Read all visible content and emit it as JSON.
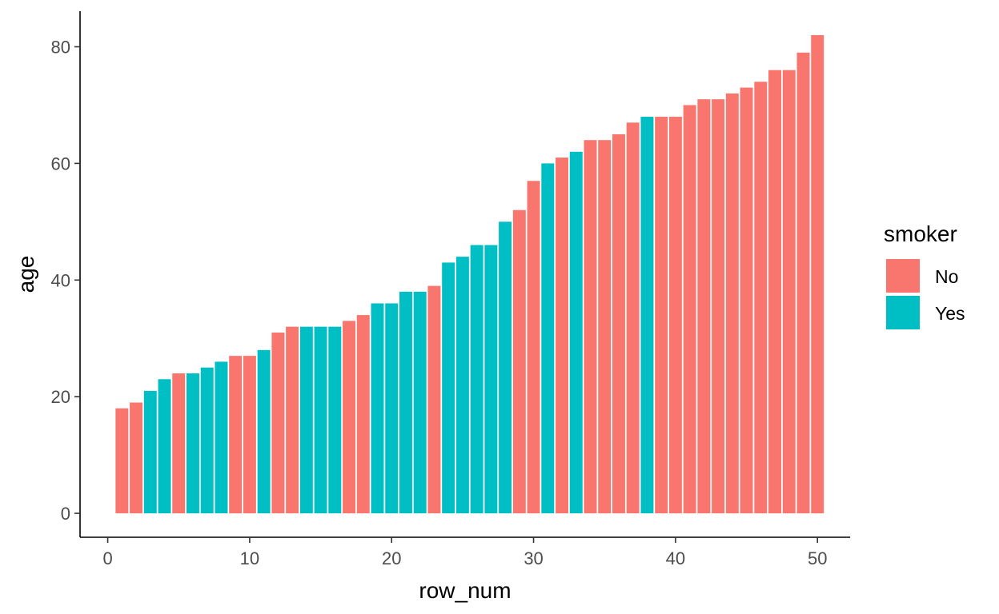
{
  "chart_data": {
    "type": "bar",
    "xlabel": "row_num",
    "ylabel": "age",
    "xlim": [
      -1.95,
      52.3
    ],
    "ylim": [
      -4.1,
      86.1
    ],
    "x_ticks": [
      0,
      10,
      20,
      30,
      40,
      50
    ],
    "y_ticks": [
      0,
      20,
      40,
      60,
      80
    ],
    "grid": false,
    "legend": {
      "title": "smoker",
      "position": "right",
      "entries": [
        {
          "label": "No",
          "color": "#F8766D"
        },
        {
          "label": "Yes",
          "color": "#00BFC4"
        }
      ]
    },
    "colors": {
      "No": "#F8766D",
      "Yes": "#00BFC4"
    },
    "bars": [
      {
        "x": 1,
        "age": 18,
        "smoker": "No"
      },
      {
        "x": 2,
        "age": 19,
        "smoker": "No"
      },
      {
        "x": 3,
        "age": 21,
        "smoker": "Yes"
      },
      {
        "x": 4,
        "age": 23,
        "smoker": "Yes"
      },
      {
        "x": 5,
        "age": 24,
        "smoker": "No"
      },
      {
        "x": 6,
        "age": 24,
        "smoker": "Yes"
      },
      {
        "x": 7,
        "age": 25,
        "smoker": "Yes"
      },
      {
        "x": 8,
        "age": 26,
        "smoker": "Yes"
      },
      {
        "x": 9,
        "age": 27,
        "smoker": "No"
      },
      {
        "x": 10,
        "age": 27,
        "smoker": "No"
      },
      {
        "x": 11,
        "age": 28,
        "smoker": "Yes"
      },
      {
        "x": 12,
        "age": 31,
        "smoker": "No"
      },
      {
        "x": 13,
        "age": 32,
        "smoker": "No"
      },
      {
        "x": 14,
        "age": 32,
        "smoker": "Yes"
      },
      {
        "x": 15,
        "age": 32,
        "smoker": "Yes"
      },
      {
        "x": 16,
        "age": 32,
        "smoker": "Yes"
      },
      {
        "x": 17,
        "age": 33,
        "smoker": "No"
      },
      {
        "x": 18,
        "age": 34,
        "smoker": "No"
      },
      {
        "x": 19,
        "age": 36,
        "smoker": "Yes"
      },
      {
        "x": 20,
        "age": 36,
        "smoker": "Yes"
      },
      {
        "x": 21,
        "age": 38,
        "smoker": "Yes"
      },
      {
        "x": 22,
        "age": 38,
        "smoker": "Yes"
      },
      {
        "x": 23,
        "age": 39,
        "smoker": "No"
      },
      {
        "x": 24,
        "age": 43,
        "smoker": "Yes"
      },
      {
        "x": 25,
        "age": 44,
        "smoker": "Yes"
      },
      {
        "x": 26,
        "age": 46,
        "smoker": "Yes"
      },
      {
        "x": 27,
        "age": 46,
        "smoker": "Yes"
      },
      {
        "x": 28,
        "age": 50,
        "smoker": "Yes"
      },
      {
        "x": 29,
        "age": 52,
        "smoker": "No"
      },
      {
        "x": 30,
        "age": 57,
        "smoker": "No"
      },
      {
        "x": 31,
        "age": 60,
        "smoker": "Yes"
      },
      {
        "x": 32,
        "age": 61,
        "smoker": "No"
      },
      {
        "x": 33,
        "age": 62,
        "smoker": "Yes"
      },
      {
        "x": 34,
        "age": 64,
        "smoker": "No"
      },
      {
        "x": 35,
        "age": 64,
        "smoker": "No"
      },
      {
        "x": 36,
        "age": 65,
        "smoker": "No"
      },
      {
        "x": 37,
        "age": 67,
        "smoker": "No"
      },
      {
        "x": 38,
        "age": 68,
        "smoker": "Yes"
      },
      {
        "x": 39,
        "age": 68,
        "smoker": "No"
      },
      {
        "x": 40,
        "age": 68,
        "smoker": "No"
      },
      {
        "x": 41,
        "age": 70,
        "smoker": "No"
      },
      {
        "x": 42,
        "age": 71,
        "smoker": "No"
      },
      {
        "x": 43,
        "age": 71,
        "smoker": "No"
      },
      {
        "x": 44,
        "age": 72,
        "smoker": "No"
      },
      {
        "x": 45,
        "age": 73,
        "smoker": "No"
      },
      {
        "x": 46,
        "age": 74,
        "smoker": "No"
      },
      {
        "x": 47,
        "age": 76,
        "smoker": "No"
      },
      {
        "x": 48,
        "age": 76,
        "smoker": "No"
      },
      {
        "x": 49,
        "age": 79,
        "smoker": "No"
      },
      {
        "x": 50,
        "age": 82,
        "smoker": "No"
      }
    ]
  }
}
